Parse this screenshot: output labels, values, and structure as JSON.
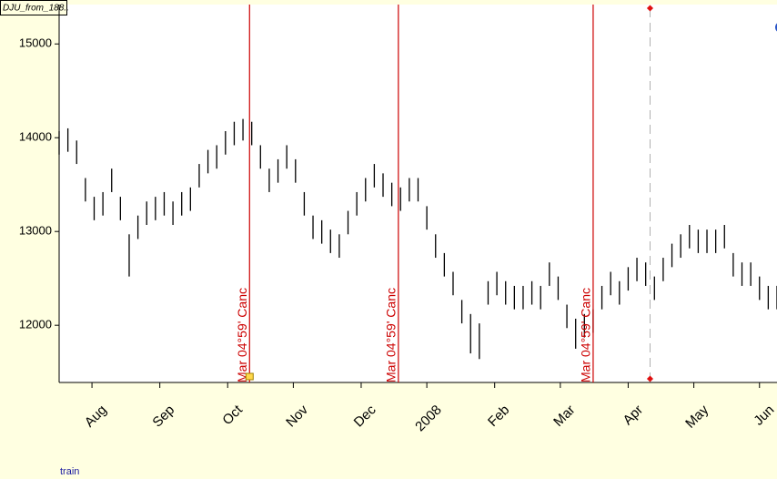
{
  "chart_data": {
    "type": "ohlc",
    "title": "DJU_from_188..",
    "color": "#000000",
    "annotation_color": "#cc0000",
    "cursor_color": "#b0b0b0",
    "footer_label": "train",
    "x": [
      0,
      4,
      8,
      12,
      16,
      20,
      24,
      28,
      32,
      36,
      40,
      44,
      48,
      52,
      56,
      60,
      64,
      68,
      72,
      76,
      80,
      84,
      88,
      92,
      96,
      100,
      104,
      108,
      112,
      116,
      120,
      124,
      128,
      132,
      136,
      140,
      144,
      148,
      152,
      156,
      160,
      164,
      168,
      172,
      176,
      180,
      184,
      188,
      192,
      196,
      200,
      204,
      208,
      212,
      216,
      220,
      224,
      228,
      232,
      236,
      240,
      244,
      248,
      252,
      256,
      260,
      264,
      268,
      272,
      276,
      280,
      284,
      288,
      292,
      296,
      300,
      304,
      308,
      312,
      316,
      320,
      324,
      328
    ],
    "high": [
      14070,
      14100,
      13970,
      13570,
      13370,
      13420,
      13670,
      13370,
      12970,
      13170,
      13320,
      13370,
      13420,
      13320,
      13420,
      13470,
      13720,
      13870,
      13920,
      14070,
      14170,
      14200,
      14170,
      13920,
      13670,
      13770,
      13920,
      13770,
      13420,
      13170,
      13120,
      13020,
      12970,
      13220,
      13420,
      13570,
      13720,
      13620,
      13520,
      13470,
      13570,
      13570,
      13270,
      12970,
      12770,
      12570,
      12270,
      12120,
      12020,
      12470,
      12570,
      12470,
      12420,
      12420,
      12470,
      12420,
      12670,
      12520,
      12220,
      12070,
      12120,
      12170,
      12420,
      12570,
      12470,
      12620,
      12720,
      12670,
      12520,
      12720,
      12870,
      12970,
      13070,
      13020,
      13020,
      13020,
      13070,
      12770,
      12670,
      12670,
      12520,
      12420,
      12420
    ],
    "low": [
      13820,
      13850,
      13720,
      13320,
      13120,
      13170,
      13420,
      13120,
      12520,
      12920,
      13070,
      13120,
      13170,
      13070,
      13170,
      13220,
      13470,
      13620,
      13670,
      13820,
      13920,
      13970,
      13920,
      13670,
      13420,
      13520,
      13670,
      13520,
      13170,
      12920,
      12870,
      12770,
      12720,
      12970,
      13170,
      13320,
      13470,
      13370,
      13270,
      13220,
      13320,
      13320,
      13020,
      12720,
      12520,
      12320,
      12020,
      11700,
      11640,
      12220,
      12320,
      12220,
      12170,
      12170,
      12220,
      12170,
      12420,
      12270,
      11970,
      11750,
      11870,
      11920,
      12170,
      12320,
      12220,
      12370,
      12470,
      12420,
      12270,
      12470,
      12620,
      12720,
      12820,
      12770,
      12770,
      12770,
      12820,
      12520,
      12420,
      12420,
      12270,
      12170,
      12170
    ],
    "xlim": [
      0,
      328
    ],
    "xticks": [
      {
        "value": 15,
        "label": "Aug"
      },
      {
        "value": 46,
        "label": "Sep"
      },
      {
        "value": 77,
        "label": "Oct"
      },
      {
        "value": 107,
        "label": "Nov"
      },
      {
        "value": 138,
        "label": "Dec"
      },
      {
        "value": 168,
        "label": "2008"
      },
      {
        "value": 199,
        "label": "Feb"
      },
      {
        "value": 229,
        "label": "Mar"
      },
      {
        "value": 260,
        "label": "Apr"
      },
      {
        "value": 290,
        "label": "May"
      },
      {
        "value": 320,
        "label": "Jun"
      }
    ],
    "ylim": [
      11390,
      15420
    ],
    "yticks": [
      12000,
      13000,
      14000,
      15000
    ],
    "annotations": [
      {
        "x": 87,
        "label": "Mar 04°59' Canc"
      },
      {
        "x": 155,
        "label": "Mar 04°59' Canc"
      },
      {
        "x": 244,
        "label": "Mar 04°59' Canc"
      }
    ],
    "cursor": {
      "x": 270
    }
  }
}
